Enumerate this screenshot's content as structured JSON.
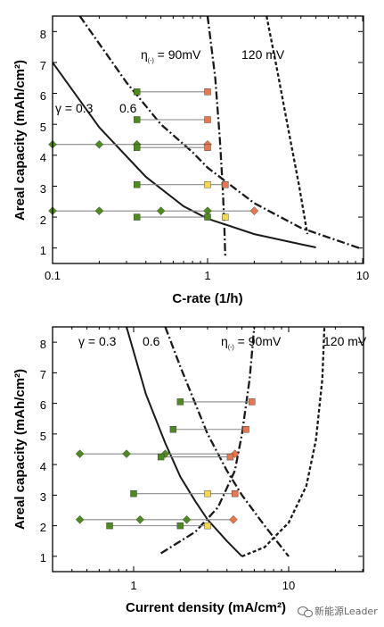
{
  "chart_data": [
    {
      "type": "line",
      "xscale": "log",
      "xlim": [
        0.1,
        10
      ],
      "ylim": [
        0.5,
        8.5
      ],
      "xticks": [
        "0.1",
        "1",
        "10"
      ],
      "yticks": [
        "1",
        "2",
        "3",
        "4",
        "5",
        "6",
        "7",
        "8"
      ],
      "xlabel": "C-rate (1/h)",
      "ylabel": "Areal capacity (mAh/cm²)",
      "annotations": {
        "gamma1": "γ = 0.3",
        "gamma2": "0.6",
        "eta1_prefix": "η",
        "eta1_sub": "(-)",
        "eta1_value": " = 90mV",
        "eta2": "120 mV"
      },
      "curves": [
        {
          "style": "solid",
          "x": [
            0.1,
            0.2,
            0.4,
            0.7,
            1,
            2,
            4,
            5
          ],
          "y": [
            7.0,
            4.9,
            3.3,
            2.35,
            1.95,
            1.45,
            1.12,
            1.02
          ]
        },
        {
          "style": "dashdot",
          "x": [
            0.15,
            0.3,
            0.5,
            0.8,
            1,
            2,
            4,
            9.5
          ],
          "y": [
            8.5,
            6.35,
            5.0,
            4.1,
            3.6,
            2.45,
            1.65,
            1.0
          ]
        },
        {
          "style": "dashdot",
          "x": [
            1.0,
            1.12,
            1.2,
            1.25,
            1.28,
            1.3
          ],
          "y": [
            8.5,
            6.5,
            4.5,
            3.0,
            1.8,
            0.75
          ]
        },
        {
          "style": "dotted",
          "x": [
            2.4,
            2.8,
            3.3,
            3.9,
            4.4
          ],
          "y": [
            8.5,
            6.8,
            4.9,
            3.0,
            1.45
          ]
        }
      ],
      "segments": [
        {
          "y": 6.05,
          "x": [
            0.35,
            1.0
          ]
        },
        {
          "y": 5.15,
          "x": [
            0.35,
            1.0
          ]
        },
        {
          "y": 4.35,
          "x": [
            0.1,
            1.0
          ]
        },
        {
          "y": 4.25,
          "x": [
            0.35,
            1.0
          ]
        },
        {
          "y": 3.05,
          "x": [
            0.35,
            1.3
          ]
        },
        {
          "y": 2.2,
          "x": [
            0.1,
            2.0
          ]
        },
        {
          "y": 2.0,
          "x": [
            0.35,
            1.0
          ]
        }
      ],
      "markers": [
        {
          "x": 0.35,
          "y": 6.05,
          "shape": "square",
          "color": "#4f8a1f"
        },
        {
          "x": 1.0,
          "y": 6.05,
          "shape": "square",
          "color": "#e8774d"
        },
        {
          "x": 0.35,
          "y": 5.15,
          "shape": "square",
          "color": "#4f8a1f"
        },
        {
          "x": 1.0,
          "y": 5.15,
          "shape": "square",
          "color": "#e8774d"
        },
        {
          "x": 0.1,
          "y": 4.35,
          "shape": "diamond",
          "color": "#4f8a1f"
        },
        {
          "x": 0.2,
          "y": 4.35,
          "shape": "diamond",
          "color": "#4f8a1f"
        },
        {
          "x": 0.35,
          "y": 4.35,
          "shape": "diamond",
          "color": "#4f8a1f"
        },
        {
          "x": 1.0,
          "y": 4.35,
          "shape": "diamond",
          "color": "#e8774d"
        },
        {
          "x": 0.35,
          "y": 4.25,
          "shape": "square",
          "color": "#4f8a1f"
        },
        {
          "x": 1.0,
          "y": 4.25,
          "shape": "square",
          "color": "#e8774d"
        },
        {
          "x": 0.35,
          "y": 3.05,
          "shape": "square",
          "color": "#4f8a1f"
        },
        {
          "x": 1.0,
          "y": 3.05,
          "shape": "square",
          "color": "#f5d84b"
        },
        {
          "x": 1.3,
          "y": 3.05,
          "shape": "square",
          "color": "#e8774d"
        },
        {
          "x": 0.1,
          "y": 2.2,
          "shape": "diamond",
          "color": "#4f8a1f"
        },
        {
          "x": 0.2,
          "y": 2.2,
          "shape": "diamond",
          "color": "#4f8a1f"
        },
        {
          "x": 0.5,
          "y": 2.2,
          "shape": "diamond",
          "color": "#4f8a1f"
        },
        {
          "x": 1.0,
          "y": 2.2,
          "shape": "diamond",
          "color": "#4f8a1f"
        },
        {
          "x": 2.0,
          "y": 2.2,
          "shape": "diamond",
          "color": "#e8774d"
        },
        {
          "x": 0.35,
          "y": 2.0,
          "shape": "square",
          "color": "#4f8a1f"
        },
        {
          "x": 1.0,
          "y": 2.0,
          "shape": "square",
          "color": "#4f8a1f"
        },
        {
          "x": 1.3,
          "y": 2.0,
          "shape": "square",
          "color": "#f5d84b"
        }
      ]
    },
    {
      "type": "line",
      "xscale": "log",
      "xlim": [
        0.3,
        30
      ],
      "ylim": [
        0.5,
        8.5
      ],
      "xticks": [
        "1",
        "10"
      ],
      "yticks": [
        "1",
        "2",
        "3",
        "4",
        "5",
        "6",
        "7",
        "8"
      ],
      "xlabel": "Current density (mA/cm²)",
      "ylabel": "Areal capacity (mAh/cm²)",
      "annotations": {
        "gamma1": "γ = 0.3",
        "gamma2": "0.6",
        "eta1_prefix": "η",
        "eta1_sub": "(-)",
        "eta1_value": " = 90mV",
        "eta2": "120 mV"
      },
      "curves": [
        {
          "style": "solid",
          "x": [
            0.9,
            1.2,
            1.6,
            2.0,
            2.5,
            3.0,
            4.0,
            5.0
          ],
          "y": [
            8.5,
            6.3,
            4.7,
            3.6,
            2.8,
            2.2,
            1.5,
            1.0
          ]
        },
        {
          "style": "dashdot",
          "x": [
            1.6,
            2.0,
            3.0,
            4.0,
            5.0,
            7.0,
            10.0
          ],
          "y": [
            8.5,
            7.2,
            5.0,
            3.8,
            3.0,
            2.0,
            1.0
          ]
        },
        {
          "style": "dashdot",
          "x": [
            1.5,
            2.5,
            3.5,
            4.5,
            5.0,
            5.6,
            6.0
          ],
          "y": [
            1.1,
            1.8,
            2.6,
            3.8,
            5.0,
            6.8,
            8.5
          ]
        },
        {
          "style": "dotted",
          "x": [
            5.0,
            7.0,
            10.0,
            13.0,
            15.0,
            16.5,
            17.0
          ],
          "y": [
            1.0,
            1.3,
            2.1,
            3.3,
            4.8,
            6.8,
            8.5
          ]
        }
      ],
      "segments": [
        {
          "y": 6.05,
          "x": [
            2.0,
            5.8
          ]
        },
        {
          "y": 5.15,
          "x": [
            1.8,
            5.3
          ]
        },
        {
          "y": 4.35,
          "x": [
            0.45,
            4.5
          ]
        },
        {
          "y": 4.25,
          "x": [
            1.5,
            4.2
          ]
        },
        {
          "y": 3.05,
          "x": [
            1.0,
            4.5
          ]
        },
        {
          "y": 2.2,
          "x": [
            0.45,
            4.4
          ]
        },
        {
          "y": 2.0,
          "x": [
            0.7,
            3.0
          ]
        }
      ],
      "markers": [
        {
          "x": 2.0,
          "y": 6.05,
          "shape": "square",
          "color": "#4f8a1f"
        },
        {
          "x": 5.8,
          "y": 6.05,
          "shape": "square",
          "color": "#e8774d"
        },
        {
          "x": 1.8,
          "y": 5.15,
          "shape": "square",
          "color": "#4f8a1f"
        },
        {
          "x": 5.3,
          "y": 5.15,
          "shape": "square",
          "color": "#e8774d"
        },
        {
          "x": 0.45,
          "y": 4.35,
          "shape": "diamond",
          "color": "#4f8a1f"
        },
        {
          "x": 0.9,
          "y": 4.35,
          "shape": "diamond",
          "color": "#4f8a1f"
        },
        {
          "x": 1.6,
          "y": 4.35,
          "shape": "diamond",
          "color": "#4f8a1f"
        },
        {
          "x": 4.5,
          "y": 4.35,
          "shape": "diamond",
          "color": "#e8774d"
        },
        {
          "x": 1.5,
          "y": 4.25,
          "shape": "square",
          "color": "#4f8a1f"
        },
        {
          "x": 4.2,
          "y": 4.25,
          "shape": "square",
          "color": "#e8774d"
        },
        {
          "x": 1.0,
          "y": 3.05,
          "shape": "square",
          "color": "#4f8a1f"
        },
        {
          "x": 3.0,
          "y": 3.05,
          "shape": "square",
          "color": "#f5d84b"
        },
        {
          "x": 4.5,
          "y": 3.05,
          "shape": "square",
          "color": "#e8774d"
        },
        {
          "x": 0.45,
          "y": 2.2,
          "shape": "diamond",
          "color": "#4f8a1f"
        },
        {
          "x": 1.1,
          "y": 2.2,
          "shape": "diamond",
          "color": "#4f8a1f"
        },
        {
          "x": 2.2,
          "y": 2.2,
          "shape": "diamond",
          "color": "#4f8a1f"
        },
        {
          "x": 4.4,
          "y": 2.2,
          "shape": "diamond",
          "color": "#e8774d"
        },
        {
          "x": 0.7,
          "y": 2.0,
          "shape": "square",
          "color": "#4f8a1f"
        },
        {
          "x": 2.0,
          "y": 2.0,
          "shape": "square",
          "color": "#4f8a1f"
        },
        {
          "x": 3.0,
          "y": 2.0,
          "shape": "square",
          "color": "#f5d84b"
        }
      ]
    }
  ],
  "watermark": {
    "text": "新能源Leader"
  }
}
